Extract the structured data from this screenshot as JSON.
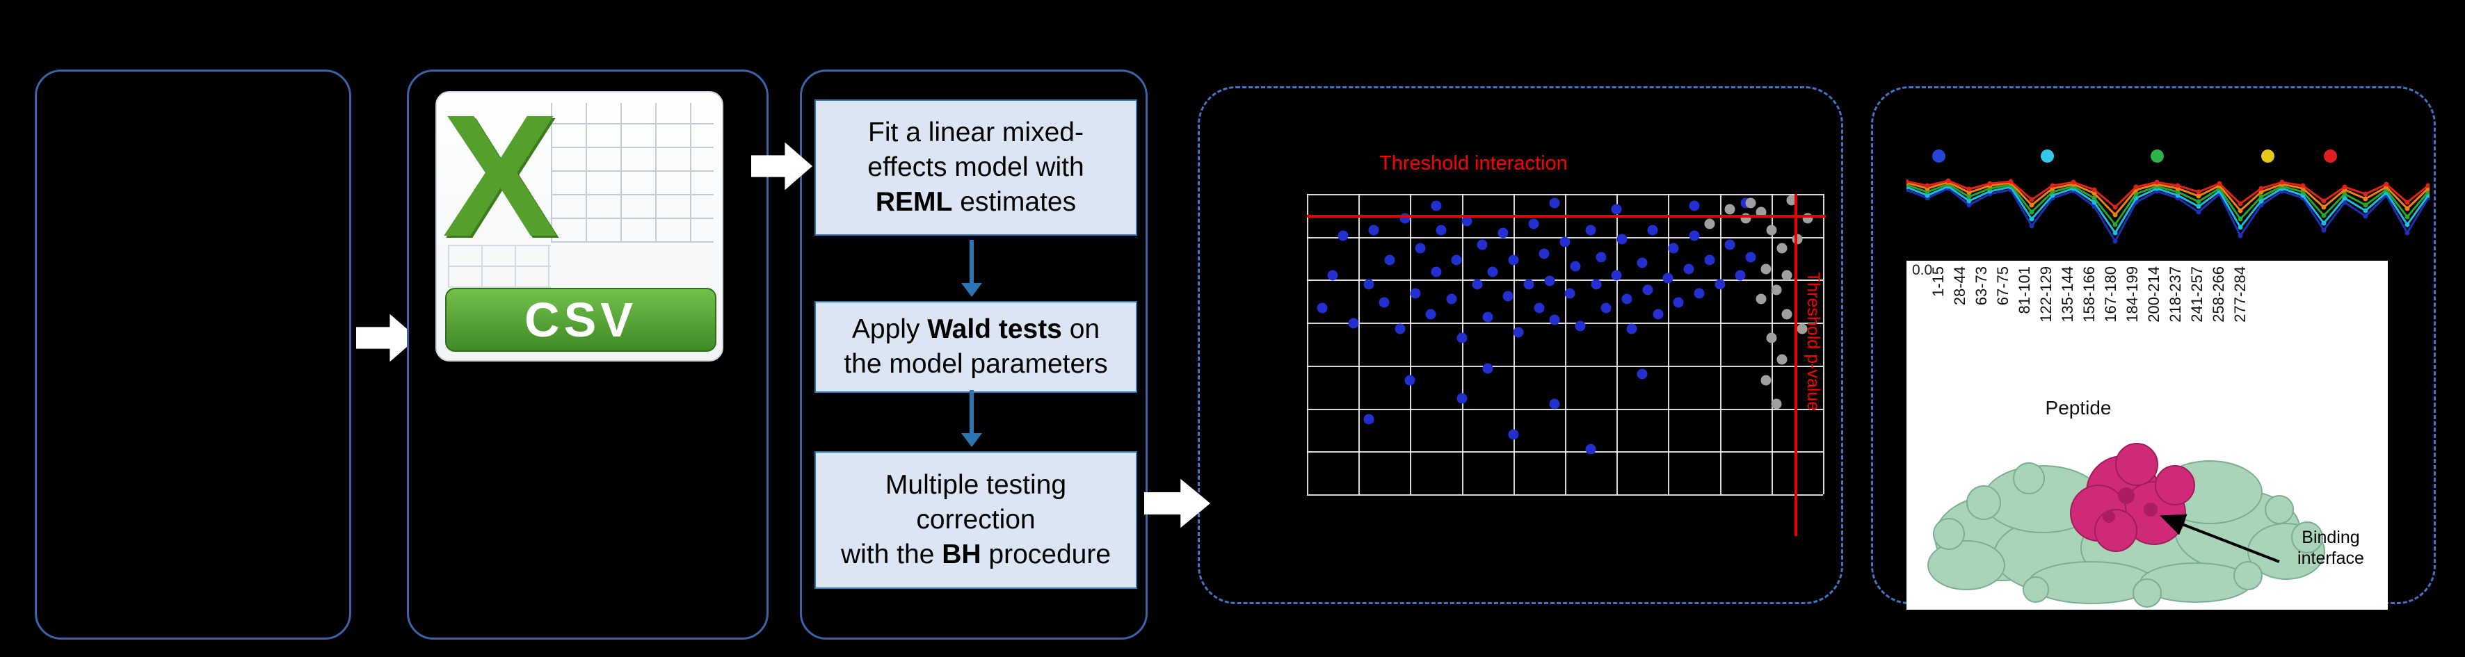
{
  "csv": {
    "letter": "X",
    "label": "CSV"
  },
  "flow": {
    "steps": [
      {
        "before": "Fit a linear mixed-\neffects model with\n",
        "bold": "REML",
        "after": " estimates"
      },
      {
        "before": "Apply ",
        "bold": "Wald tests",
        "after": " on\nthe model parameters"
      },
      {
        "before": "Multiple testing\ncorrection\nwith the ",
        "bold": "BH",
        "after": " procedure"
      }
    ]
  },
  "chart_data": [
    {
      "type": "scatter",
      "title": "Threshold interaction",
      "side_label": "Threshold p-value",
      "grid": {
        "cols": 10,
        "rows": 7
      },
      "thresholds": {
        "h_pct": 7,
        "v_pct": 94.5,
        "color": "#e60000"
      },
      "series": [
        {
          "name": "significant",
          "color": "#2330cf",
          "points": [
            [
              3,
              38
            ],
            [
              5,
              27
            ],
            [
              7,
              14
            ],
            [
              9,
              43
            ],
            [
              12,
              30
            ],
            [
              13,
              12
            ],
            [
              15,
              36
            ],
            [
              16,
              22
            ],
            [
              18,
              45
            ],
            [
              19,
              8
            ],
            [
              21,
              33
            ],
            [
              22,
              18
            ],
            [
              24,
              40
            ],
            [
              25,
              26
            ],
            [
              26,
              12
            ],
            [
              28,
              35
            ],
            [
              29,
              22
            ],
            [
              30,
              48
            ],
            [
              31,
              9
            ],
            [
              33,
              30
            ],
            [
              34,
              17
            ],
            [
              35,
              41
            ],
            [
              36,
              26
            ],
            [
              38,
              13
            ],
            [
              39,
              34
            ],
            [
              40,
              22
            ],
            [
              41,
              46
            ],
            [
              43,
              30
            ],
            [
              44,
              10
            ],
            [
              45,
              38
            ],
            [
              46,
              20
            ],
            [
              47,
              29
            ],
            [
              48,
              42
            ],
            [
              50,
              16
            ],
            [
              51,
              33
            ],
            [
              52,
              24
            ],
            [
              53,
              44
            ],
            [
              55,
              12
            ],
            [
              56,
              30
            ],
            [
              57,
              21
            ],
            [
              58,
              38
            ],
            [
              60,
              27
            ],
            [
              61,
              15
            ],
            [
              62,
              35
            ],
            [
              63,
              45
            ],
            [
              65,
              23
            ],
            [
              66,
              32
            ],
            [
              67,
              12
            ],
            [
              68,
              40
            ],
            [
              70,
              28
            ],
            [
              71,
              18
            ],
            [
              72,
              36
            ],
            [
              74,
              25
            ],
            [
              75,
              14
            ],
            [
              76,
              33
            ],
            [
              78,
              22
            ],
            [
              80,
              30
            ],
            [
              82,
              17
            ],
            [
              84,
              27
            ],
            [
              86,
              21
            ],
            [
              20,
              62
            ],
            [
              35,
              58
            ],
            [
              48,
              70
            ],
            [
              55,
              85
            ],
            [
              40,
              80
            ],
            [
              12,
              75
            ],
            [
              65,
              60
            ],
            [
              30,
              68
            ],
            [
              25,
              4
            ],
            [
              48,
              3
            ],
            [
              60,
              5
            ],
            [
              75,
              4
            ],
            [
              85,
              3
            ]
          ]
        },
        {
          "name": "non-significant",
          "color": "#a0a0a0",
          "points": [
            [
              88,
              6
            ],
            [
              90,
              12
            ],
            [
              92,
              18
            ],
            [
              89,
              25
            ],
            [
              91,
              32
            ],
            [
              93,
              40
            ],
            [
              90,
              48
            ],
            [
              92,
              55
            ],
            [
              89,
              62
            ],
            [
              91,
              70
            ],
            [
              93,
              27
            ],
            [
              88,
              35
            ],
            [
              85,
              8
            ],
            [
              82,
              5
            ],
            [
              78,
              10
            ],
            [
              95,
              15
            ],
            [
              96,
              45
            ],
            [
              97,
              8
            ],
            [
              86,
              3
            ],
            [
              94,
              2
            ]
          ]
        }
      ]
    },
    {
      "type": "line",
      "legend_dot_colors": [
        "#2746d8",
        "#35c8e8",
        "#2db34a",
        "#e4c81e",
        "#e02020"
      ],
      "series": [
        {
          "color": "#1f2fb8",
          "values": [
            30,
            42,
            28,
            52,
            36,
            30,
            82,
            42,
            32,
            54,
            104,
            48,
            32,
            42,
            62,
            36,
            96,
            52,
            32,
            42,
            88,
            48,
            68,
            38,
            92,
            42
          ]
        },
        {
          "color": "#19bfdf",
          "values": [
            26,
            38,
            25,
            46,
            32,
            26,
            72,
            38,
            28,
            48,
            92,
            42,
            28,
            38,
            54,
            32,
            84,
            46,
            28,
            38,
            78,
            42,
            60,
            34,
            80,
            38
          ]
        },
        {
          "color": "#2aa52e",
          "values": [
            23,
            33,
            22,
            40,
            28,
            23,
            62,
            33,
            25,
            42,
            80,
            36,
            25,
            33,
            47,
            28,
            72,
            40,
            25,
            33,
            67,
            36,
            52,
            30,
            69,
            33
          ]
        },
        {
          "color": "#f2820f",
          "values": [
            20,
            28,
            19,
            34,
            24,
            20,
            52,
            28,
            22,
            35,
            66,
            30,
            22,
            28,
            39,
            24,
            60,
            33,
            22,
            28,
            55,
            30,
            43,
            26,
            57,
            28
          ]
        },
        {
          "color": "#e0231a",
          "values": [
            18,
            24,
            17,
            29,
            21,
            18,
            44,
            24,
            19,
            30,
            55,
            26,
            19,
            24,
            33,
            21,
            50,
            28,
            19,
            24,
            46,
            26,
            36,
            22,
            48,
            24
          ]
        }
      ]
    }
  ],
  "peptides": {
    "ytick": "0.0",
    "labels": [
      "1-15",
      "28-44",
      "63-73",
      "67-75",
      "81-101",
      "122-129",
      "135-144",
      "158-166",
      "167-180",
      "184-199",
      "200-214",
      "218-237",
      "241-257",
      "258-266",
      "277-284"
    ],
    "axis_label": "Peptide"
  },
  "protein": {
    "annotation": "Binding interface"
  }
}
